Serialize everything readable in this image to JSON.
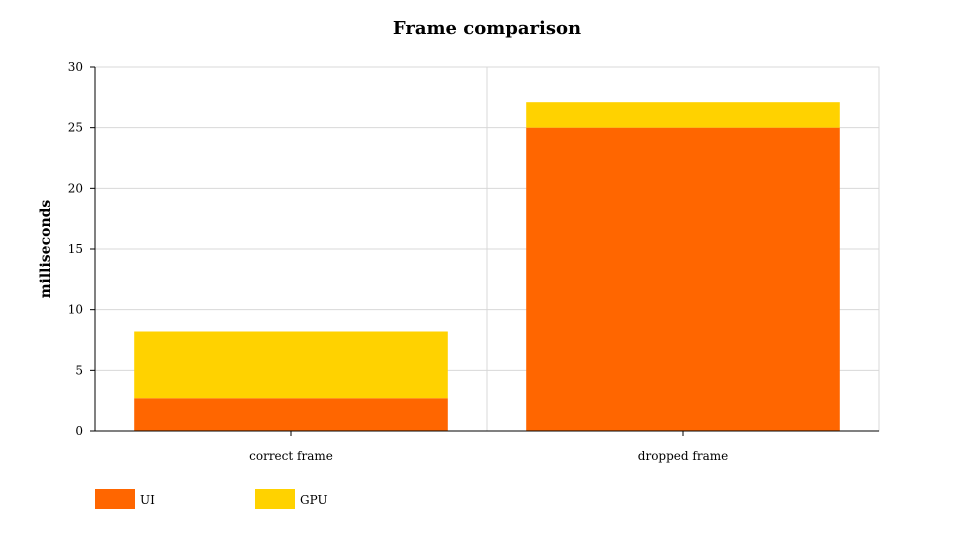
{
  "chart_data": {
    "type": "bar",
    "stacked": true,
    "title": "Frame comparison",
    "xlabel": "",
    "ylabel": "milliseconds",
    "ylim": [
      0,
      30
    ],
    "yticks": [
      0,
      5,
      10,
      15,
      20,
      25,
      30
    ],
    "categories": [
      "correct frame",
      "dropped frame"
    ],
    "series": [
      {
        "name": "UI",
        "color": "#ff6600",
        "values": [
          2.7,
          25
        ]
      },
      {
        "name": "GPU",
        "color": "#ffd200",
        "values": [
          5.5,
          2.1
        ]
      }
    ],
    "grid": true,
    "legend": "bottom-left"
  }
}
